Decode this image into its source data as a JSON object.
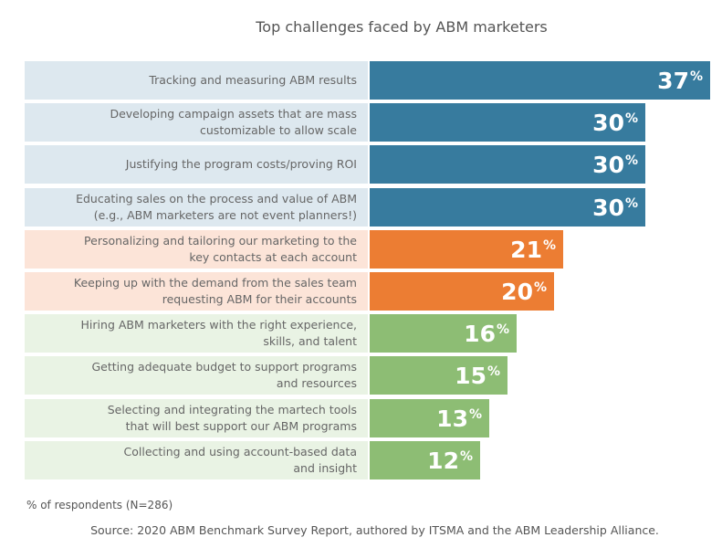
{
  "chart_data": {
    "type": "bar",
    "orientation": "horizontal",
    "title": "Top challenges faced by ABM marketers",
    "categories": [
      "Tracking and measuring ABM results",
      "Developing campaign assets that are mass customizable to allow scale",
      "Justifying the program costs/proving ROI",
      "Educating sales on the process and value of ABM (e.g., ABM marketers are not event planners!)",
      "Personalizing and tailoring our marketing to the key contacts at each account",
      "Keeping up with the demand from the sales team requesting ABM for their accounts",
      "Hiring ABM marketers with the right experience, skills, and talent",
      "Getting adequate budget to support programs and resources",
      "Selecting and integrating the martech tools that will best support our ABM programs",
      "Collecting and using account-based data and insight"
    ],
    "label_lines": [
      [
        "Tracking and measuring ABM results"
      ],
      [
        "Developing campaign assets that are mass",
        "customizable to allow scale"
      ],
      [
        "Justifying the program costs/proving ROI"
      ],
      [
        "Educating sales on the process and value of ABM",
        "(e.g., ABM marketers are not event planners!)"
      ],
      [
        "Personalizing and tailoring our marketing to the",
        "key contacts at each account"
      ],
      [
        "Keeping up with the demand from the sales team",
        "requesting ABM for their accounts"
      ],
      [
        "Hiring ABM marketers with the right experience,",
        "skills, and talent"
      ],
      [
        "Getting adequate budget to support programs",
        "and resources"
      ],
      [
        "Selecting and integrating the martech tools",
        "that will best support our ABM programs"
      ],
      [
        "Collecting and using account-based data",
        "and insight"
      ]
    ],
    "values": [
      37,
      30,
      30,
      30,
      21,
      20,
      16,
      15,
      13,
      12
    ],
    "unit": "%",
    "groups": [
      "blue",
      "blue",
      "blue",
      "blue",
      "orange",
      "orange",
      "green",
      "green",
      "green",
      "green"
    ],
    "colors": {
      "blue": {
        "bar": "#377b9e",
        "label_bg": "#dde8ef"
      },
      "orange": {
        "bar": "#ec7d33",
        "label_bg": "#fce4d8"
      },
      "green": {
        "bar": "#8dbd74",
        "label_bg": "#e9f3e4"
      }
    },
    "xlim": [
      0,
      37
    ],
    "grid": false,
    "note": "% of respondents (N=286)",
    "source": "Source: 2020 ABM Benchmark Survey Report, authored by ITSMA and the ABM Leadership Alliance."
  }
}
